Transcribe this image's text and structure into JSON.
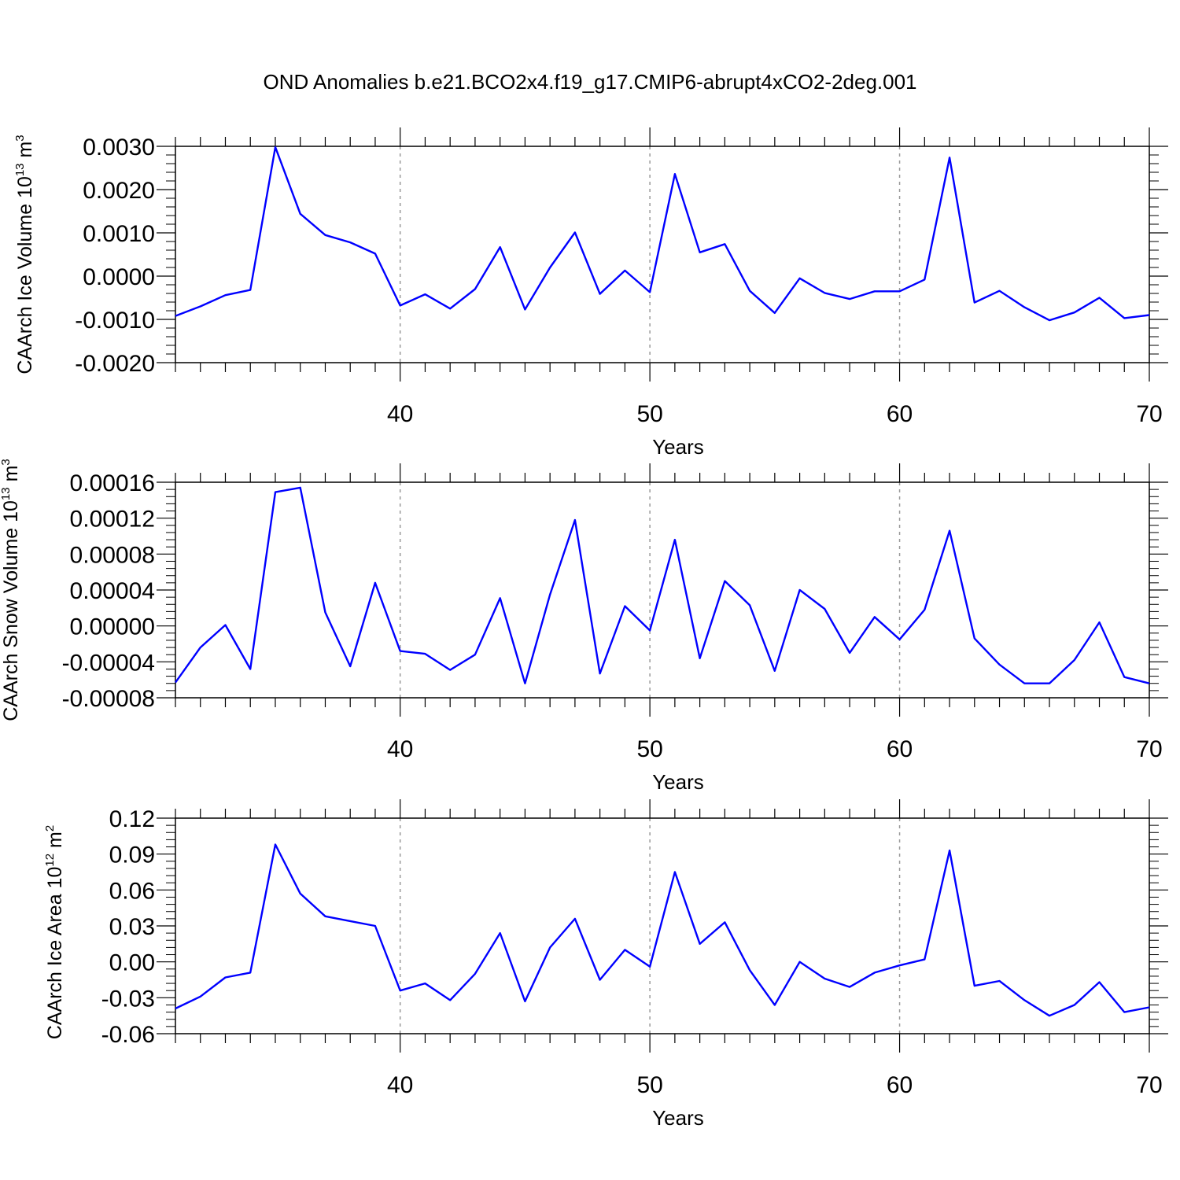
{
  "title": "OND Anomalies b.e21.BCO2x4.f19_g17.CMIP6-abrupt4xCO2-2deg.001",
  "colors": {
    "line": "#0000ff",
    "grid": "#999999",
    "axis": "#000000"
  },
  "chart_data": [
    {
      "type": "line",
      "ylabel": "CAArch Ice Volume",
      "yunit_base": "10",
      "yunit_exp": "13",
      "yunit_tail": "m",
      "yunit_tail_exp": "3",
      "xlabel": "Years",
      "xlim": [
        31,
        70
      ],
      "ylim": [
        -0.002,
        0.003
      ],
      "yticks": [
        -0.002,
        -0.001,
        0.0,
        0.001,
        0.002,
        0.003
      ],
      "ytick_labels": [
        "-0.0020",
        "-0.0010",
        "0.0000",
        "0.0010",
        "0.0020",
        "0.0030"
      ],
      "xticks": [
        40,
        50,
        60,
        70
      ],
      "xtick_labels": [
        "40",
        "50",
        "60",
        "70"
      ],
      "x": [
        31,
        32,
        33,
        34,
        35,
        36,
        37,
        38,
        39,
        40,
        41,
        42,
        43,
        44,
        45,
        46,
        47,
        48,
        49,
        50,
        51,
        52,
        53,
        54,
        55,
        56,
        57,
        58,
        59,
        60,
        61,
        62,
        63,
        64,
        65,
        66,
        67,
        68,
        69,
        70
      ],
      "values": [
        -0.00092,
        -0.0007,
        -0.00044,
        -0.00032,
        0.00298,
        0.00144,
        0.00095,
        0.00078,
        0.00052,
        -0.00068,
        -0.00042,
        -0.00075,
        -0.0003,
        0.00067,
        -0.00077,
        0.0002,
        0.00101,
        -0.00041,
        0.00013,
        -0.00037,
        0.00236,
        0.00055,
        0.00074,
        -0.00034,
        -0.00085,
        -5e-05,
        -0.00039,
        -0.00053,
        -0.00035,
        -0.00035,
        -8e-05,
        0.00274,
        -0.00061,
        -0.00034,
        -0.00072,
        -0.00102,
        -0.00084,
        -0.0005,
        -0.00097,
        -0.0009
      ]
    },
    {
      "type": "line",
      "ylabel": "CAArch Snow Volume",
      "yunit_base": "10",
      "yunit_exp": "13",
      "yunit_tail": "m",
      "yunit_tail_exp": "3",
      "xlabel": "Years",
      "xlim": [
        31,
        70
      ],
      "ylim": [
        -8e-05,
        0.00016
      ],
      "yticks": [
        -8e-05,
        -4e-05,
        0.0,
        4e-05,
        8e-05,
        0.00012,
        0.00016
      ],
      "ytick_labels": [
        "-0.00008",
        "-0.00004",
        "0.00000",
        "0.00004",
        "0.00008",
        "0.00012",
        "0.00016"
      ],
      "xticks": [
        40,
        50,
        60,
        70
      ],
      "xtick_labels": [
        "40",
        "50",
        "60",
        "70"
      ],
      "x": [
        31,
        32,
        33,
        34,
        35,
        36,
        37,
        38,
        39,
        40,
        41,
        42,
        43,
        44,
        45,
        46,
        47,
        48,
        49,
        50,
        51,
        52,
        53,
        54,
        55,
        56,
        57,
        58,
        59,
        60,
        61,
        62,
        63,
        64,
        65,
        66,
        67,
        68,
        69,
        70
      ],
      "values": [
        -6.3e-05,
        -2.4e-05,
        1e-06,
        -4.8e-05,
        0.000149,
        0.000154,
        1.5e-05,
        -4.5e-05,
        4.8e-05,
        -2.8e-05,
        -3.1e-05,
        -4.9e-05,
        -3.2e-05,
        3.1e-05,
        -6.4e-05,
        3.5e-05,
        0.000118,
        -5.3e-05,
        2.2e-05,
        -5e-06,
        9.6e-05,
        -3.6e-05,
        5e-05,
        2.3e-05,
        -5e-05,
        4e-05,
        1.9e-05,
        -3e-05,
        1e-05,
        -1.5e-05,
        1.8e-05,
        0.000106,
        -1.4e-05,
        -4.3e-05,
        -6.4e-05,
        -6.4e-05,
        -3.8e-05,
        4e-06,
        -5.7e-05,
        -6.4e-05
      ]
    },
    {
      "type": "line",
      "ylabel": "CAArch Ice Area",
      "yunit_base": "10",
      "yunit_exp": "12",
      "yunit_tail": "m",
      "yunit_tail_exp": "2",
      "xlabel": "Years",
      "xlim": [
        31,
        70
      ],
      "ylim": [
        -0.06,
        0.12
      ],
      "yticks": [
        -0.06,
        -0.03,
        0.0,
        0.03,
        0.06,
        0.09,
        0.12
      ],
      "ytick_labels": [
        "-0.06",
        "-0.03",
        "0.00",
        "0.03",
        "0.06",
        "0.09",
        "0.12"
      ],
      "xticks": [
        40,
        50,
        60,
        70
      ],
      "xtick_labels": [
        "40",
        "50",
        "60",
        "70"
      ],
      "x": [
        31,
        32,
        33,
        34,
        35,
        36,
        37,
        38,
        39,
        40,
        41,
        42,
        43,
        44,
        45,
        46,
        47,
        48,
        49,
        50,
        51,
        52,
        53,
        54,
        55,
        56,
        57,
        58,
        59,
        60,
        61,
        62,
        63,
        64,
        65,
        66,
        67,
        68,
        69,
        70
      ],
      "values": [
        -0.039,
        -0.029,
        -0.013,
        -0.009,
        0.098,
        0.057,
        0.038,
        0.034,
        0.03,
        -0.024,
        -0.018,
        -0.032,
        -0.01,
        0.024,
        -0.033,
        0.012,
        0.036,
        -0.015,
        0.01,
        -0.004,
        0.075,
        0.015,
        0.033,
        -0.007,
        -0.036,
        0.0,
        -0.014,
        -0.021,
        -0.009,
        -0.003,
        0.002,
        0.093,
        -0.02,
        -0.016,
        -0.032,
        -0.045,
        -0.036,
        -0.017,
        -0.042,
        -0.038
      ]
    }
  ]
}
